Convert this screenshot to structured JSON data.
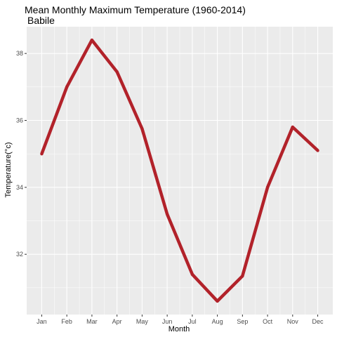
{
  "chart_data": {
    "type": "line",
    "title": "Mean Monthly Maximum Temperature (1960-2014)",
    "subtitle": "Babile",
    "xlabel": "Month",
    "ylabel": "Temperature(°c)",
    "categories": [
      "Jan",
      "Feb",
      "Mar",
      "Apr",
      "May",
      "Jun",
      "Jul",
      "Aug",
      "Sep",
      "Oct",
      "Nov",
      "Dec"
    ],
    "series": [
      {
        "values": [
          35.0,
          37.0,
          38.4,
          37.45,
          35.75,
          33.2,
          31.4,
          30.6,
          31.35,
          34.0,
          35.8,
          35.1
        ]
      }
    ],
    "ylim": [
      30.2,
      38.8
    ],
    "yticks": [
      32,
      34,
      36,
      38
    ],
    "grid": true,
    "legend": "none",
    "colors": {
      "line": "#b2222a",
      "panel": "#ebebeb",
      "grid": "#ffffff"
    }
  }
}
